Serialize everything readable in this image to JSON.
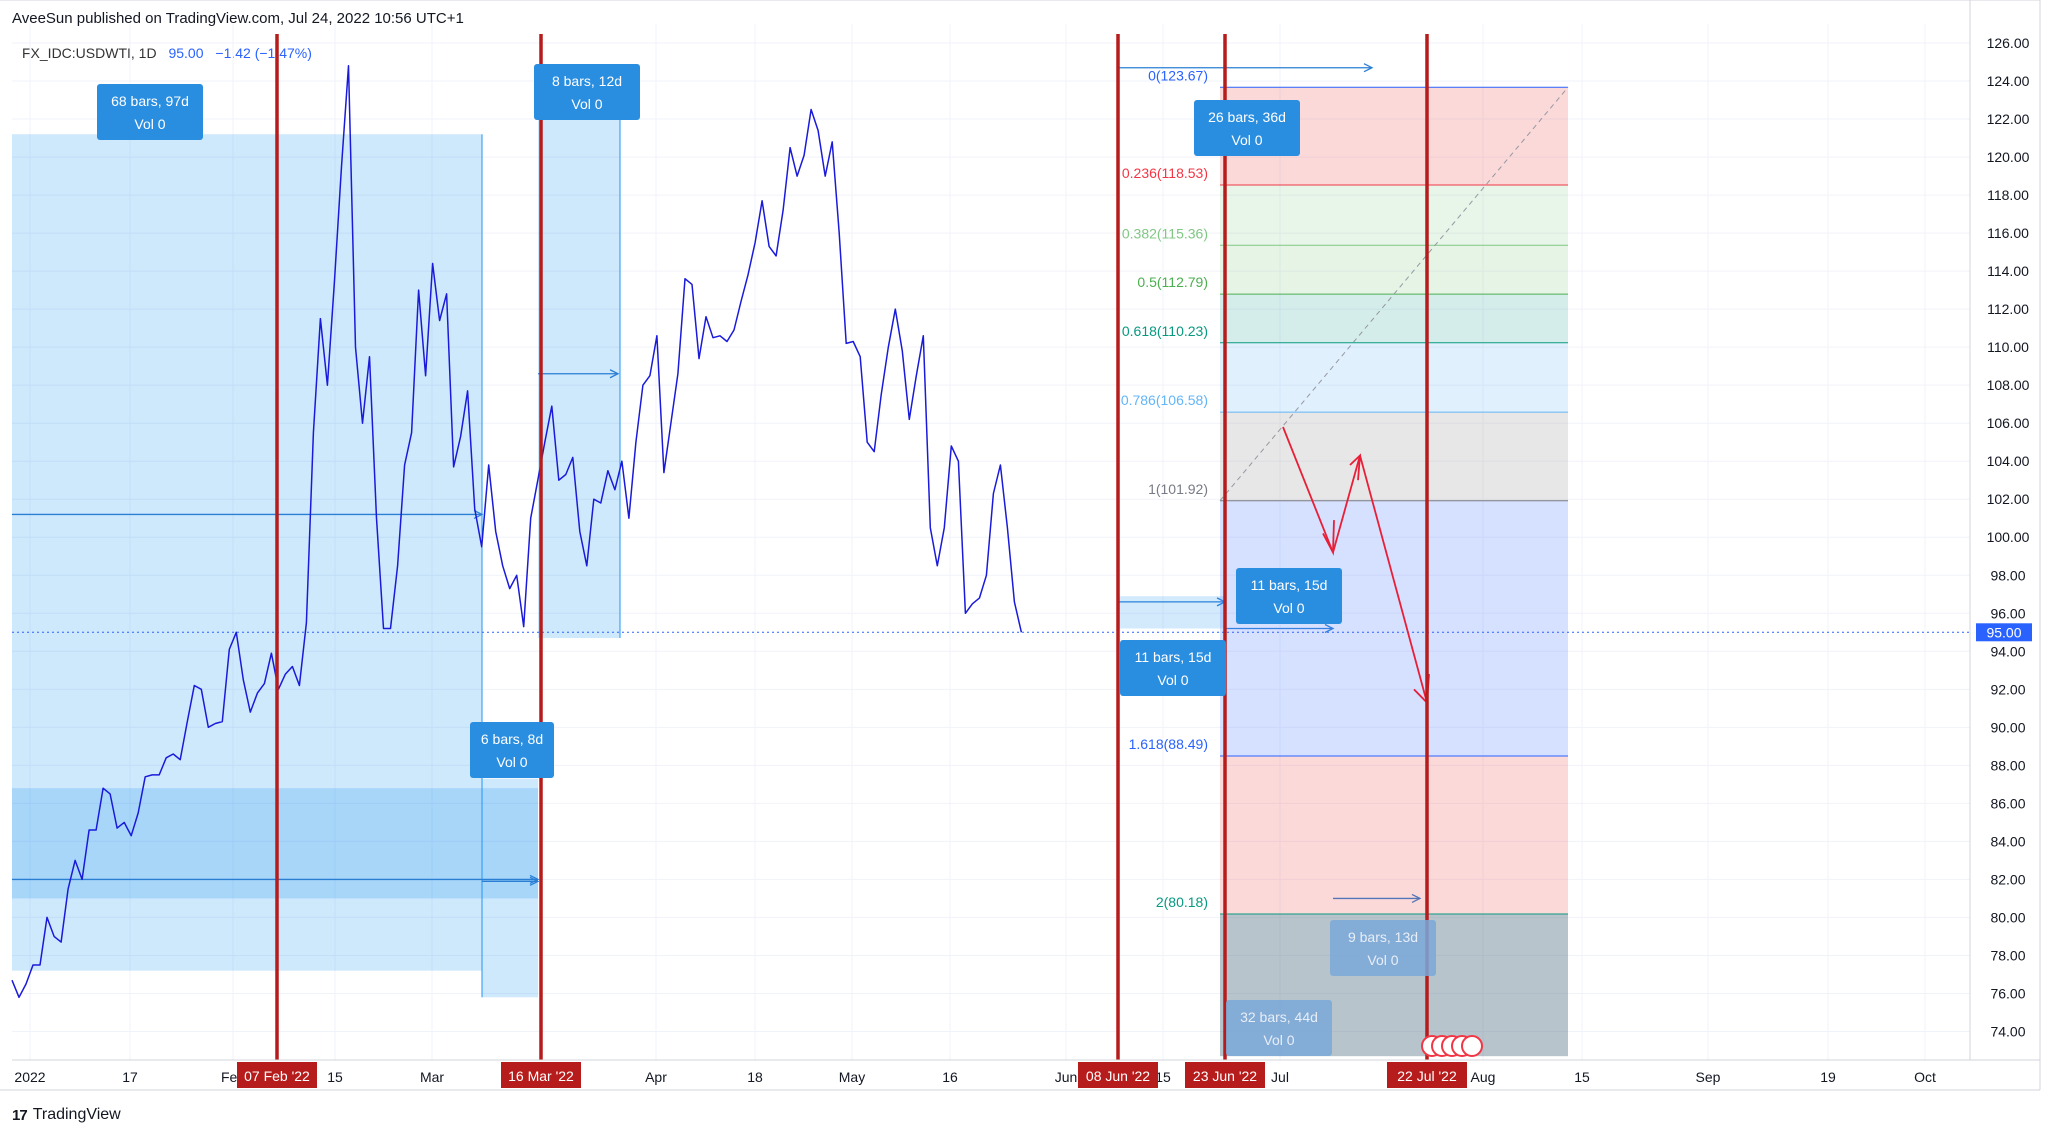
{
  "header": {
    "published": "AveeSun published on TradingView.com, Jul 24, 2022 10:56 UTC+1"
  },
  "symbol": {
    "name": "FX_IDC:USDWTI, 1D",
    "last": "95.00",
    "change": "−1.42 (−1.47%)"
  },
  "footer": {
    "brand": "TradingView",
    "logo_glyph": "17"
  },
  "colors": {
    "line": "#1a1adb",
    "vline": "#b71c1c",
    "box": "#2196f3",
    "label_bg": "#2a8ee0",
    "arrow": "#e91e37"
  },
  "chart_data": {
    "type": "line",
    "title": "",
    "ylabel": "",
    "xlabel": "",
    "y_axis": {
      "range": [
        72.5,
        127
      ],
      "ticks": [
        74,
        76,
        78,
        80,
        82,
        84,
        86,
        88,
        90,
        92,
        94,
        96,
        98,
        100,
        102,
        104,
        106,
        108,
        110,
        112,
        114,
        116,
        118,
        120,
        122,
        124,
        126
      ]
    },
    "x_axis": {
      "tick_labels": [
        "2022",
        "17",
        "Feb",
        "15",
        "Mar",
        "Apr",
        "18",
        "May",
        "16",
        "Jun",
        "15",
        "Jul",
        "Aug",
        "15",
        "Sep",
        "19",
        "Oct"
      ]
    },
    "current_price": 95.0,
    "series": [
      {
        "values": [
          76.7,
          75.8,
          76.5,
          77.5,
          77.5,
          80,
          79,
          78.7,
          81.5,
          83,
          82,
          84.6,
          84.6,
          86.8,
          86.5,
          84.7,
          85,
          84.3,
          85.5,
          87.4,
          87.5,
          87.5,
          88.4,
          88.6,
          88.3,
          90.3,
          92.2,
          92,
          90,
          90.2,
          90.3,
          94.1,
          95,
          92.5,
          90.8,
          91.8,
          92.3,
          93.9,
          92,
          92.8,
          93.2,
          92.2,
          95.5,
          105.5,
          111.5,
          108,
          113.5,
          119.5,
          124.8,
          110,
          106,
          109.5,
          101,
          95.2,
          95.2,
          98.5,
          103.8,
          105.5,
          113,
          108.5,
          114.4,
          111.4,
          112.8,
          103.7,
          105.3,
          107.7,
          101.5,
          99.5,
          103.8,
          100.3,
          98.5,
          97.3,
          98,
          95.3,
          101,
          103,
          105,
          106.9,
          103,
          103.3,
          104.2,
          100.3,
          98.5,
          102,
          101.8,
          103.5,
          102.5,
          104,
          101,
          105,
          108,
          108.5,
          110.6,
          103.4,
          106,
          108.6,
          113.6,
          113.3,
          109.4,
          111.6,
          110.5,
          110.6,
          110.3,
          110.9,
          112.4,
          113.8,
          115.5,
          117.7,
          115.3,
          114.8,
          117.2,
          120.5,
          119,
          120.1,
          122.5,
          121.4,
          119,
          120.8,
          116,
          110.2,
          110.3,
          109.5,
          105,
          104.5,
          107.5,
          110,
          112,
          109.8,
          106.2,
          108.5,
          110.6,
          100.5,
          98.5,
          100.5,
          104.8,
          104,
          96,
          96.5,
          96.8,
          98,
          102.3,
          103.8,
          100.5,
          96.6,
          95
        ]
      }
    ],
    "vertical_markers": [
      "07 Feb '22",
      "16 Mar '22",
      "08 Jun '22",
      "23 Jun '22",
      "22 Jul '22"
    ],
    "fib_levels": [
      {
        "label": "0(123.67)",
        "value": 123.67,
        "color": "#2962ff"
      },
      {
        "label": "0.236(118.53)",
        "value": 118.53,
        "color": "#f23645"
      },
      {
        "label": "0.382(115.36)",
        "value": 115.36,
        "color": "#81c784"
      },
      {
        "label": "0.5(112.79)",
        "value": 112.79,
        "color": "#4caf50"
      },
      {
        "label": "0.618(110.23)",
        "value": 110.23,
        "color": "#089981"
      },
      {
        "label": "0.786(106.58)",
        "value": 106.58,
        "color": "#64b5f6"
      },
      {
        "label": "1(101.92)",
        "value": 101.92,
        "color": "#787b86"
      },
      {
        "label": "1.618(88.49)",
        "value": 88.49,
        "color": "#2962ff"
      },
      {
        "label": "2(80.18)",
        "value": 80.18,
        "color": "#089981"
      }
    ],
    "range_labels": [
      {
        "line1": "68 bars, 97d",
        "line2": "Vol 0",
        "style": "solid"
      },
      {
        "line1": "8 bars, 12d",
        "line2": "Vol 0",
        "style": "solid"
      },
      {
        "line1": "6 bars, 8d",
        "line2": "Vol 0",
        "style": "solid"
      },
      {
        "line1": "26 bars, 36d",
        "line2": "Vol 0",
        "style": "solid"
      },
      {
        "line1": "11 bars, 15d",
        "line2": "Vol 0",
        "style": "solid"
      },
      {
        "line1": "11 bars, 15d",
        "line2": "Vol 0",
        "style": "solid"
      },
      {
        "line1": "9 bars, 13d",
        "line2": "Vol 0",
        "style": "faded"
      },
      {
        "line1": "32 bars, 44d",
        "line2": "Vol 0",
        "style": "faded"
      }
    ]
  }
}
